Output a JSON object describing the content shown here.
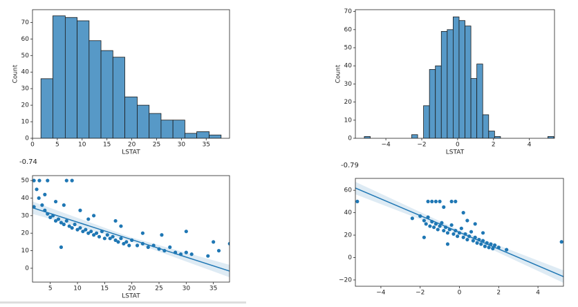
{
  "outputs": [
    "-0.74",
    "-0.79"
  ],
  "chart_data": [
    {
      "type": "histogram",
      "xlabel": "LSTAT",
      "ylabel": "Count",
      "color": "#5799c7",
      "bins": [
        1.7,
        4.1,
        6.6,
        9.0,
        11.4,
        13.8,
        16.2,
        18.6,
        21.1,
        23.5,
        25.9,
        28.3,
        30.7,
        33.1,
        35.6,
        38.0
      ],
      "values": [
        36,
        74,
        73,
        71,
        59,
        53,
        49,
        25,
        20,
        15,
        11,
        11,
        3,
        4,
        2
      ],
      "xlim": [
        0,
        39.7
      ],
      "xticks": [
        0,
        5,
        10,
        15,
        20,
        25,
        30,
        35
      ],
      "ylim": [
        0,
        77.7
      ],
      "yticks": [
        0,
        10,
        20,
        30,
        40,
        50,
        60,
        70
      ]
    },
    {
      "type": "histogram",
      "xlabel": "LSTAT",
      "ylabel": "Count",
      "color": "#5799c7",
      "bins": [
        -5.2,
        -4.87,
        -4.54,
        -4.21,
        -3.88,
        -3.55,
        -3.22,
        -2.89,
        -2.56,
        -2.23,
        -1.9,
        -1.57,
        -1.24,
        -0.91,
        -0.58,
        -0.25,
        0.08,
        0.41,
        0.74,
        1.07,
        1.4,
        1.73,
        2.06,
        2.39,
        2.72,
        3.05,
        3.38,
        3.71,
        4.04,
        4.37,
        4.7,
        5.03,
        5.36
      ],
      "values": [
        1,
        0,
        0,
        0,
        0,
        0,
        0,
        0,
        2,
        0,
        18,
        38,
        40,
        59,
        60,
        67,
        65,
        62,
        33,
        41,
        13,
        4,
        1,
        0,
        0,
        0,
        0,
        0,
        0,
        0,
        0,
        1
      ],
      "xlim": [
        -5.7,
        5.4
      ],
      "xticks": [
        {
          "value": -4,
          "label": "−4"
        },
        {
          "value": -2,
          "label": "−2"
        },
        0,
        2,
        4
      ],
      "ylim": [
        0,
        71
      ],
      "yticks": [
        0,
        10,
        20,
        30,
        40,
        50,
        60,
        70
      ]
    },
    {
      "type": "scatter",
      "xlabel": "LSTAT",
      "color": "#1f77b4",
      "x": [
        2.9,
        3.5,
        4.0,
        4.5,
        5.0,
        5.5,
        6.0,
        6.5,
        7.0,
        7.5,
        8.0,
        8.5,
        9.0,
        9.5,
        10.0,
        10.5,
        11.0,
        11.5,
        12.0,
        12.5,
        13.0,
        13.5,
        14.0,
        14.5,
        15.0,
        15.5,
        16.0,
        16.5,
        17.0,
        17.5,
        18.0,
        18.5,
        19.0,
        19.5,
        20.0,
        21.0,
        22.0,
        23.0,
        24.0,
        25.0,
        26.0,
        27.0,
        28.0,
        29.0,
        30.0,
        31.0,
        34.0,
        36.0,
        38.0,
        2.0,
        3.0,
        4.5,
        8.0,
        9.0,
        2.5,
        4.0,
        6.0,
        7.5,
        10.5,
        13.0,
        17.0,
        18.0,
        22.0,
        25.5,
        30.0,
        35.0,
        2.0,
        7.0,
        12.0
      ],
      "y": [
        40,
        36,
        33,
        31,
        29,
        30,
        27,
        28,
        26,
        25,
        27,
        24,
        23,
        25,
        22,
        23,
        21,
        22,
        20,
        21,
        19,
        20,
        18,
        21,
        17,
        19,
        17,
        18,
        16,
        15,
        17,
        14,
        15,
        13,
        16,
        13,
        14,
        12,
        13,
        11,
        10,
        12,
        9,
        8,
        9,
        8,
        7,
        10,
        14,
        50,
        50,
        50,
        50,
        50,
        45,
        42,
        38,
        36,
        33,
        30,
        27,
        24,
        20,
        19,
        21,
        15,
        35,
        12,
        28
      ],
      "regression": {
        "x": [
          1.73,
          37.97
        ],
        "y": [
          34.5,
          -1.6
        ]
      },
      "xlim": [
        1.73,
        37.97
      ],
      "xticks": [
        5,
        10,
        15,
        20,
        25,
        30,
        35
      ],
      "ylim": [
        -7.9,
        52.8
      ],
      "yticks": [
        0,
        10,
        20,
        30,
        40,
        50
      ]
    },
    {
      "type": "scatter",
      "color": "#1f77b4",
      "x": [
        -2.0,
        -1.8,
        -1.7,
        -1.6,
        -1.5,
        -1.4,
        -1.3,
        -1.2,
        -1.1,
        -1.0,
        -0.9,
        -0.8,
        -0.7,
        -0.6,
        -0.5,
        -0.4,
        -0.3,
        -0.2,
        -0.1,
        0.0,
        0.1,
        0.2,
        0.3,
        0.4,
        0.5,
        0.6,
        0.7,
        0.8,
        0.9,
        1.0,
        1.1,
        1.2,
        1.3,
        1.4,
        1.5,
        1.6,
        1.7,
        1.8,
        2.0,
        2.4,
        -5.2,
        -2.4,
        -1.6,
        -1.4,
        -1.2,
        -1.0,
        -0.8,
        -0.4,
        -0.2,
        0.2,
        0.8,
        -1.8,
        5.2,
        1.2,
        -0.6,
        0.4
      ],
      "y": [
        37,
        33,
        30,
        36,
        28,
        32,
        27,
        30,
        25,
        28,
        31,
        24,
        27,
        22,
        25,
        29,
        21,
        24,
        19,
        22,
        26,
        18,
        21,
        16,
        19,
        23,
        15,
        18,
        13,
        16,
        12,
        15,
        10,
        13,
        9,
        12,
        8,
        11,
        9,
        7,
        50,
        35,
        50,
        50,
        50,
        50,
        45,
        50,
        50,
        40,
        30,
        18,
        14,
        22,
        12,
        33
      ],
      "regression": {
        "x": [
          -5.3,
          5.3
        ],
        "y": [
          62,
          -17
        ]
      },
      "xlim": [
        -5.3,
        5.3
      ],
      "xticks": [
        {
          "value": -4,
          "label": "−4"
        },
        {
          "value": -2,
          "label": "−2"
        },
        0,
        2,
        4
      ],
      "ylim": [
        -25.6,
        70.6
      ],
      "yticks": [
        {
          "value": -20,
          "label": "−20"
        },
        0,
        20,
        40,
        60
      ]
    }
  ]
}
